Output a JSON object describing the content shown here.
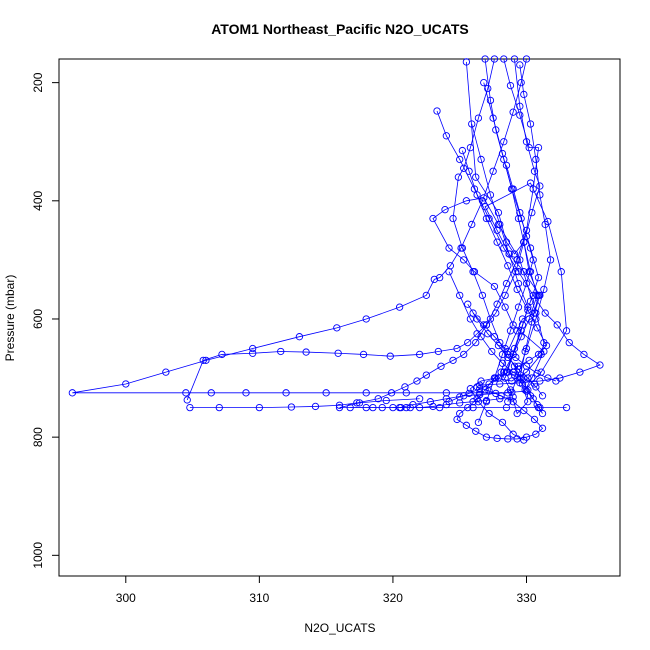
{
  "chart_data": {
    "type": "scatter",
    "title": "ATOM1 Northeast_Pacific N2O_UCATS",
    "xlabel": "N2O_UCATS",
    "ylabel": "Pressure (mbar)",
    "xlim": [
      295,
      337
    ],
    "ylim": [
      1035,
      160
    ],
    "y_reversed": true,
    "x_ticks": [
      "300",
      "310",
      "320",
      "330"
    ],
    "y_ticks": [
      "200",
      "400",
      "600",
      "800",
      "1000"
    ],
    "grid": false,
    "legend": "none",
    "color": "#0000ff",
    "series": [
      {
        "x": [
          325.5,
          326.2,
          327.9,
          328.5,
          329.1,
          329.8,
          330.2,
          330.9,
          330.4,
          329.9,
          329.5,
          330.1,
          329.3,
          328.8,
          328.1,
          328.6,
          329.3,
          329.7,
          330.6,
          331.0,
          329.8,
          328.7,
          327.8,
          326.9,
          330.3,
          331.6,
          332.6,
          333.0,
          331.1,
          329.9,
          330.4,
          331.3,
          329.0,
          328.4,
          327.6,
          326.1,
          325.3,
          324.2,
          323.0,
          323.9,
          325.5,
          326.8,
          327.9,
          329.5,
          330.7,
          331.3,
          331.1,
          330.0,
          328.9,
          327.7,
          326.6,
          325.8,
          326.4,
          327.2,
          328.2,
          329.0,
          329.8
        ],
        "y": [
          165,
          360,
          420,
          470,
          490,
          470,
          520,
          560,
          605,
          655,
          700,
          740,
          760,
          720,
          690,
          655,
          620,
          600,
          590,
          560,
          520,
          490,
          450,
          410,
          370,
          435,
          520,
          620,
          690,
          720,
          700,
          655,
          610,
          580,
          545,
          520,
          500,
          480,
          430,
          415,
          400,
          395,
          440,
          500,
          590,
          640,
          660,
          690,
          705,
          700,
          705,
          718,
          740,
          760,
          775,
          795,
          805
        ]
      },
      {
        "x": [
          326.9,
          327.3,
          327.7,
          328.3,
          328.9,
          329.4,
          329.8,
          330.3,
          330.8,
          330.2,
          329.6,
          329.0,
          328.3,
          327.6,
          326.9,
          326.3,
          325.6,
          325.0,
          324.8,
          325.5,
          326.2,
          327.0,
          327.8,
          328.6,
          329.3,
          330.0,
          330.7,
          331.2,
          330.6,
          329.8,
          329.0,
          328.1,
          327.2,
          326.3
        ],
        "y": [
          160,
          230,
          280,
          330,
          380,
          430,
          470,
          520,
          560,
          600,
          630,
          660,
          690,
          700,
          720,
          735,
          750,
          760,
          770,
          780,
          790,
          800,
          802,
          803,
          803,
          800,
          795,
          785,
          770,
          755,
          740,
          730,
          722,
          715
        ]
      },
      {
        "x": [
          327.6,
          327.1,
          326.4,
          325.8,
          325.3,
          324.9,
          324.5,
          325.2,
          326.0,
          326.7,
          327.3,
          328.0,
          328.6,
          329.1,
          329.6,
          330.1,
          330.5,
          330.9,
          331.2,
          330.8,
          330.3,
          329.7,
          329.1,
          328.5
        ],
        "y": [
          160,
          210,
          260,
          310,
          345,
          360,
          430,
          480,
          520,
          560,
          600,
          640,
          660,
          680,
          700,
          720,
          735,
          750,
          760,
          745,
          730,
          710,
          695,
          690
        ]
      },
      {
        "x": [
          328.3,
          328.8,
          329.5,
          330.2,
          330.9,
          330.5,
          330.0,
          329.3,
          328.5,
          327.8,
          327.0,
          326.2,
          325.3,
          324.5,
          323.6,
          322.5,
          321.8,
          320.9,
          319.9,
          318.9,
          317.3,
          316.0,
          314.2,
          312.4,
          310.0,
          307.0,
          304.8
        ],
        "y": [
          160,
          205,
          255,
          310,
          310,
          380,
          450,
          500,
          540,
          575,
          610,
          640,
          660,
          670,
          680,
          695,
          705,
          715,
          725,
          735,
          742,
          746,
          748,
          749,
          750,
          750,
          750
        ]
      },
      {
        "x": [
          329.1,
          329.5,
          330.0,
          330.6,
          331.0,
          330.4,
          329.8,
          329.2,
          328.4,
          327.7,
          327.0,
          326.3,
          325.6,
          324.8,
          323.4,
          322.0,
          319.8,
          317.8,
          315.9,
          313.5,
          311.6,
          309.5,
          307.2,
          305.8,
          304.6
        ],
        "y": [
          160,
          240,
          300,
          350,
          375,
          420,
          470,
          520,
          560,
          590,
          610,
          625,
          640,
          650,
          655,
          660,
          663,
          660,
          658,
          656,
          655,
          658,
          660,
          670,
          737
        ]
      },
      {
        "x": [
          330.0,
          329.6,
          329.0,
          328.3,
          327.5,
          326.7,
          325.9,
          325.1,
          324.3,
          323.5,
          323.1,
          322.5,
          320.5,
          318.0,
          315.8,
          313.0,
          309.5,
          306.0,
          303.0,
          300.0,
          296.0,
          304.5,
          306.4,
          309.0,
          312.0,
          315.0,
          318.0,
          321.0,
          324.0,
          326.5,
          328.6
        ],
        "y": [
          160,
          200,
          250,
          300,
          350,
          400,
          440,
          480,
          510,
          530,
          533,
          560,
          580,
          600,
          615,
          630,
          650,
          670,
          690,
          710,
          725,
          725,
          725,
          725,
          725,
          725,
          725,
          725,
          725,
          725,
          725
        ]
      },
      {
        "x": [
          323.3,
          324.0,
          325.0,
          326.1,
          327.2,
          328.3,
          329.4,
          330.5,
          331.4,
          332.3,
          333.2,
          334.3,
          335.5,
          334.0,
          332.5,
          331.0,
          329.5,
          328.0,
          326.5
        ],
        "y": [
          248,
          290,
          330,
          380,
          430,
          480,
          520,
          560,
          590,
          610,
          640,
          660,
          678,
          690,
          700,
          705,
          708,
          710,
          712
        ]
      },
      {
        "x": [
          325.2,
          325.7,
          326.3,
          327.0,
          327.8,
          328.6,
          329.3,
          330.1,
          330.8,
          331.5,
          330.9,
          330.2,
          329.4,
          328.6,
          327.9,
          327.2,
          326.5,
          325.7,
          325.0,
          324.2
        ],
        "y": [
          315,
          350,
          390,
          430,
          470,
          510,
          550,
          585,
          615,
          645,
          660,
          670,
          680,
          690,
          700,
          710,
          718,
          726,
          732,
          740
        ]
      },
      {
        "x": [
          322.0,
          319.5,
          317.5,
          316.0,
          318.5,
          321.0,
          323.5,
          326.0,
          328.5,
          331.0,
          333.0
        ],
        "y": [
          735,
          738,
          742,
          750,
          750,
          750,
          750,
          750,
          750,
          750,
          750
        ]
      },
      {
        "x": [
          320.0,
          320.6,
          321.3,
          322.0,
          323.0,
          324.0,
          325.0,
          326.0,
          327.0,
          328.0,
          329.0
        ],
        "y": [
          750,
          750,
          750,
          750,
          748,
          745,
          742,
          740,
          738,
          735,
          732
        ]
      },
      {
        "x": [
          316.8,
          318.0,
          319.2,
          320.5,
          321.5,
          322.8,
          324.0,
          325.3,
          326.5,
          327.7,
          328.9,
          330.0
        ],
        "y": [
          750,
          750,
          750,
          750,
          745,
          740,
          735,
          730,
          728,
          726,
          724,
          722
        ]
      },
      {
        "x": [
          326.0,
          326.8,
          327.6,
          328.4,
          329.2,
          330.0,
          330.8,
          331.6,
          332.2
        ],
        "y": [
          590,
          610,
          630,
          650,
          665,
          680,
          692,
          700,
          705
        ]
      },
      {
        "x": [
          325.6,
          326.3,
          327.1,
          327.9,
          328.6,
          329.4,
          330.1,
          330.7,
          331.2
        ],
        "y": [
          575,
          600,
          625,
          645,
          665,
          685,
          700,
          715,
          730
        ]
      },
      {
        "x": [
          324.2,
          325.0,
          325.8,
          326.6,
          327.4,
          328.2,
          329.0,
          329.8,
          330.6
        ],
        "y": [
          520,
          560,
          600,
          630,
          655,
          675,
          690,
          700,
          710
        ]
      },
      {
        "x": [
          328.5,
          329.0,
          329.5,
          330.0,
          330.5,
          330.0,
          329.4,
          328.8,
          328.2,
          327.6,
          327.0,
          326.4
        ],
        "y": [
          340,
          380,
          420,
          460,
          500,
          540,
          580,
          620,
          660,
          700,
          740,
          775
        ]
      },
      {
        "x": [
          326.8,
          327.5,
          328.2,
          328.9,
          329.6,
          330.3,
          330.9,
          330.3,
          329.7,
          329.1,
          328.5
        ],
        "y": [
          200,
          260,
          320,
          380,
          430,
          480,
          530,
          570,
          610,
          650,
          690
        ]
      },
      {
        "x": [
          325.9,
          326.6,
          327.3,
          328.0,
          328.7,
          329.4,
          330.1,
          329.6,
          329.0,
          328.4
        ],
        "y": [
          270,
          330,
          390,
          440,
          490,
          540,
          580,
          620,
          660,
          700
        ]
      },
      {
        "x": [
          329.5,
          329.8,
          330.3,
          330.7,
          331.0,
          331.4,
          331.8,
          331.3,
          330.7,
          330.0,
          329.3,
          328.6
        ],
        "y": [
          170,
          220,
          270,
          330,
          390,
          440,
          500,
          550,
          600,
          650,
          700,
          740
        ]
      }
    ]
  }
}
